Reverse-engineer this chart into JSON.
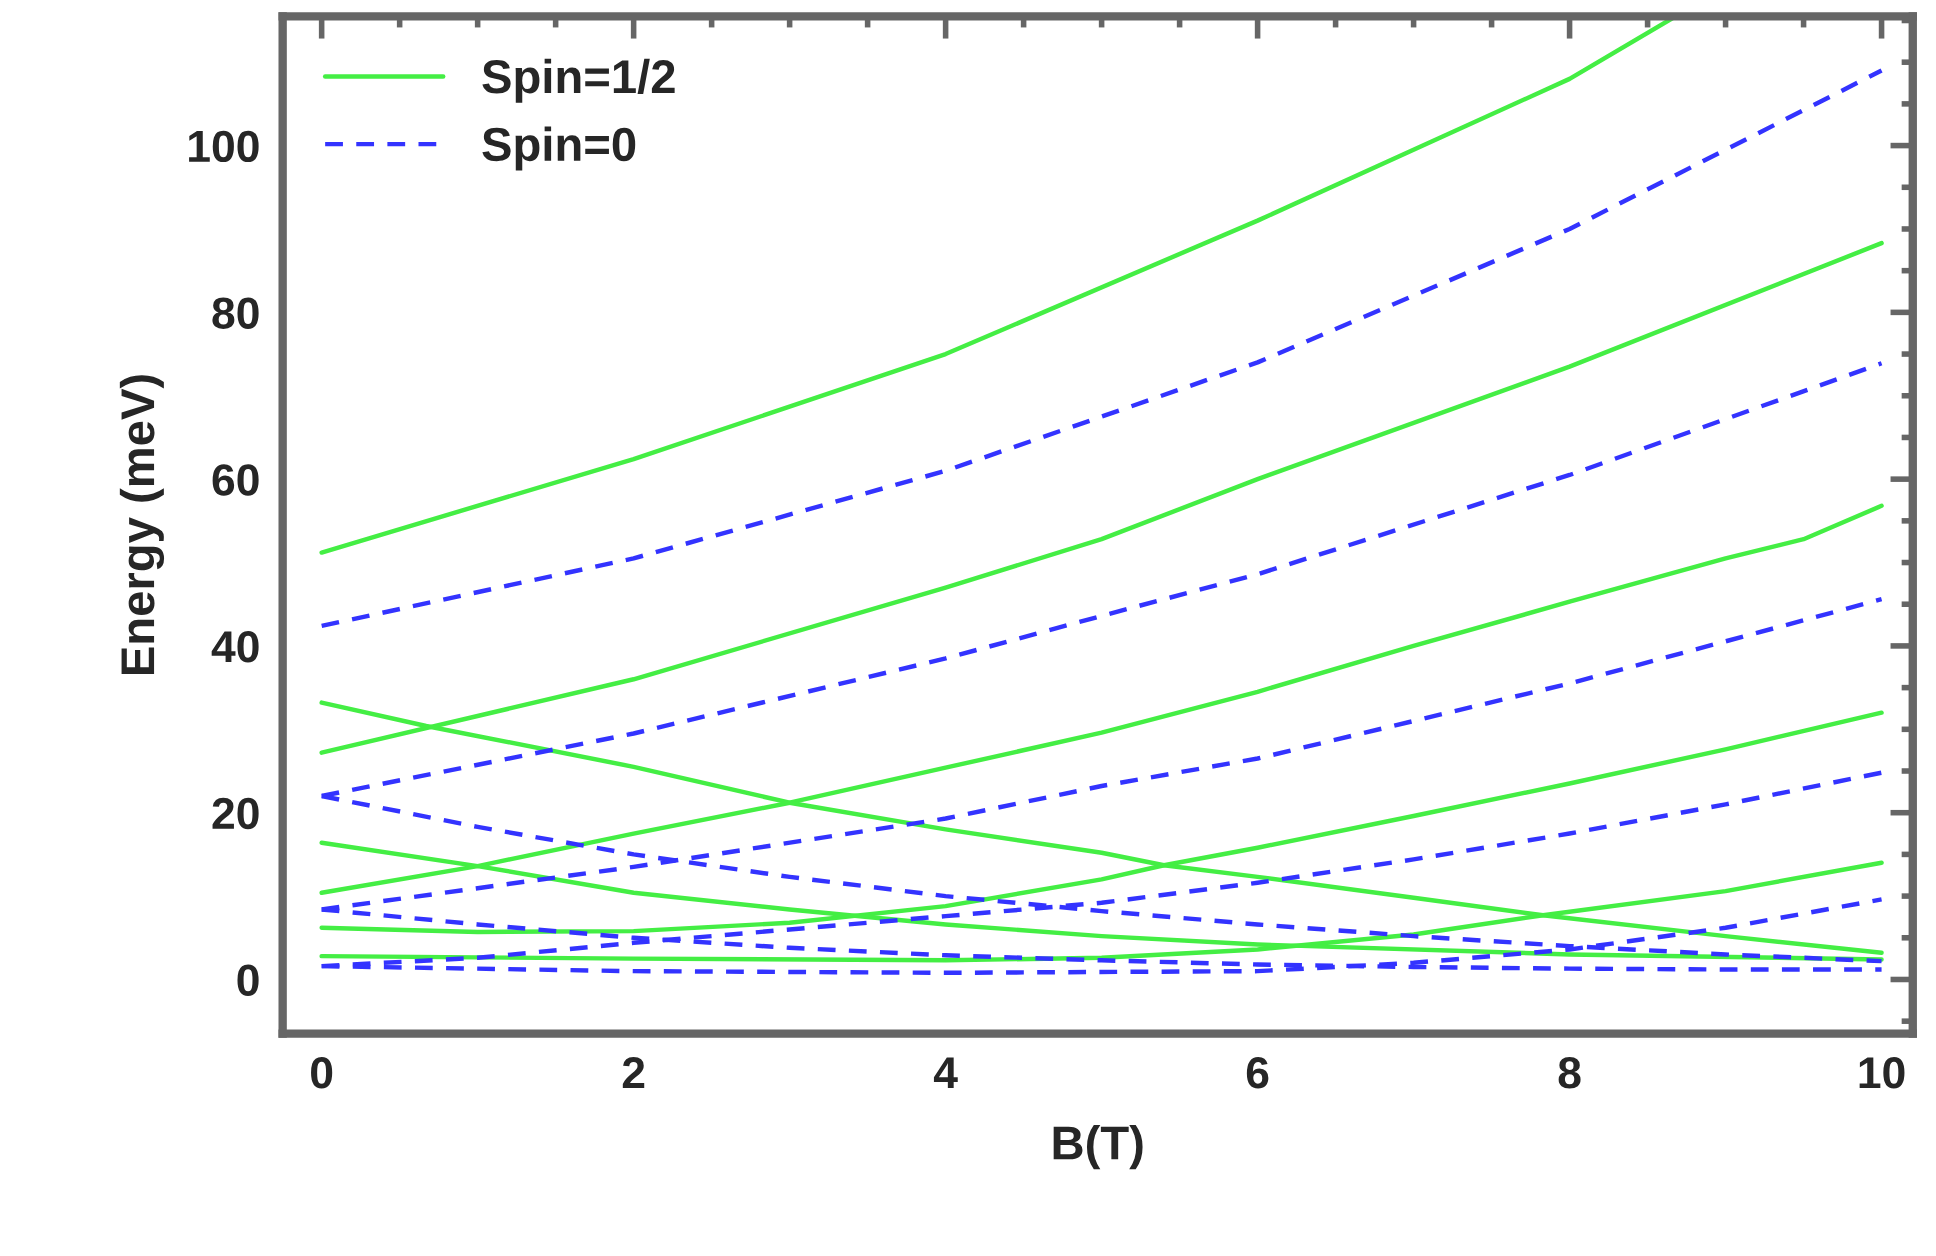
{
  "chart_data": {
    "type": "line",
    "xlabel": "B(T)",
    "ylabel": "Energy (meV)",
    "xlim": [
      -0.25,
      10.2
    ],
    "ylim": [
      -6.5,
      115.5
    ],
    "xticks": [
      0,
      2,
      4,
      6,
      8,
      10
    ],
    "yticks": [
      0,
      20,
      40,
      60,
      80,
      100
    ],
    "grid": false,
    "legend": "top left",
    "series": [
      {
        "name": "Spin=1/2",
        "color": "#44ee44",
        "line_style": "solid",
        "x": [
          0,
          2,
          4,
          6,
          8,
          8.68
        ],
        "values": [
          51.2,
          62.4,
          75,
          91,
          108,
          115.5
        ]
      },
      {
        "color": "#44ee44",
        "line_style": "solid",
        "x": [
          0,
          2,
          4,
          5,
          6,
          8,
          10
        ],
        "values": [
          27.2,
          36,
          47,
          52.8,
          60,
          73.5,
          88.3
        ]
      },
      {
        "color": "#44ee44",
        "line_style": "solid",
        "x": [
          0,
          1,
          2,
          3,
          4,
          5,
          6,
          7,
          8,
          9,
          9.5,
          10
        ],
        "values": [
          10.4,
          13.6,
          17.5,
          21.2,
          25.4,
          29.6,
          34.5,
          40,
          45.3,
          50.5,
          52.8,
          56.8
        ]
      },
      {
        "color": "#44ee44",
        "line_style": "solid",
        "x": [
          0,
          1,
          2,
          3,
          4,
          5,
          5.4,
          6,
          7,
          8,
          9,
          10
        ],
        "values": [
          6.2,
          5.7,
          5.8,
          6.8,
          8.8,
          12,
          13.7,
          15.8,
          19.6,
          23.5,
          27.6,
          32
        ]
      },
      {
        "color": "#44ee44",
        "line_style": "solid",
        "x": [
          0,
          2,
          4,
          5,
          6,
          7,
          7.83,
          9,
          10
        ],
        "values": [
          2.8,
          2.5,
          2.3,
          2.6,
          3.6,
          5.4,
          7.7,
          10.6,
          14
        ]
      },
      {
        "color": "#44ee44",
        "line_style": "solid",
        "x": [
          0,
          0.67,
          2,
          3,
          4,
          5,
          5.4,
          6,
          7,
          7.83,
          9,
          10
        ],
        "values": [
          33.2,
          30.4,
          25.5,
          21.2,
          18,
          15.2,
          13.7,
          12.3,
          9.8,
          7.7,
          5.2,
          3.2
        ]
      },
      {
        "color": "#44ee44",
        "line_style": "solid",
        "x": [
          0,
          1,
          2,
          3,
          4,
          5,
          6,
          8,
          10
        ],
        "values": [
          16.4,
          13.6,
          10.4,
          8.4,
          6.6,
          5.2,
          4.2,
          3,
          2.4
        ]
      },
      {
        "name": "Spin=0",
        "color": "#3333ff",
        "line_style": "dashed",
        "x": [
          0,
          2,
          4,
          6,
          8,
          10
        ],
        "values": [
          42.4,
          50.5,
          61,
          74,
          90,
          109
        ]
      },
      {
        "color": "#3333ff",
        "line_style": "dashed",
        "x": [
          0,
          2,
          4,
          5,
          6,
          8,
          10
        ],
        "values": [
          22,
          29.5,
          38.5,
          43.6,
          48.6,
          60.5,
          73.9
        ]
      },
      {
        "color": "#3333ff",
        "line_style": "dashed",
        "x": [
          0,
          2,
          4,
          5,
          6,
          8,
          10
        ],
        "values": [
          8.4,
          13.5,
          19.3,
          23.2,
          26.5,
          35.5,
          45.6
        ]
      },
      {
        "color": "#3333ff",
        "line_style": "dashed",
        "x": [
          0,
          1,
          2,
          3,
          4,
          5,
          6,
          7,
          8,
          9,
          10
        ],
        "values": [
          1.6,
          2.6,
          4.4,
          6,
          7.6,
          9.2,
          11.6,
          14.4,
          17.5,
          21,
          24.8
        ]
      },
      {
        "color": "#3333ff",
        "line_style": "dashed",
        "x": [
          0,
          2,
          4,
          6,
          7,
          8,
          9,
          10
        ],
        "values": [
          1.6,
          1,
          0.8,
          1,
          2,
          3.6,
          6.2,
          9.6
        ]
      },
      {
        "color": "#3333ff",
        "line_style": "dashed",
        "x": [
          0,
          1,
          2,
          3,
          4,
          5,
          6,
          7,
          8,
          9,
          10
        ],
        "values": [
          22,
          18.3,
          15,
          12.3,
          10,
          8.2,
          6.6,
          5.2,
          4,
          3,
          2.2
        ]
      },
      {
        "color": "#3333ff",
        "line_style": "dashed",
        "x": [
          0,
          1,
          2,
          3,
          4,
          5,
          6,
          7,
          8,
          9,
          10
        ],
        "values": [
          8.4,
          6.6,
          5,
          3.8,
          2.9,
          2.3,
          1.8,
          1.5,
          1.3,
          1.2,
          1.2
        ]
      }
    ]
  }
}
